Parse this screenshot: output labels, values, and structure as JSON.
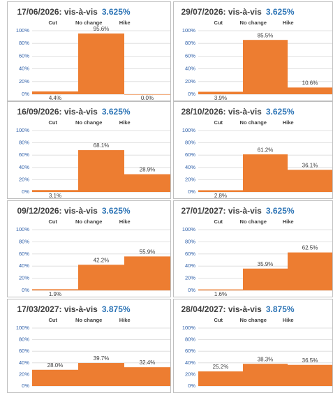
{
  "chart_data": [
    {
      "type": "bar",
      "title": "17/06/2026: vis-à-vis",
      "title_rate": "3.625%",
      "categories": [
        "Cut",
        "No change",
        "Hike"
      ],
      "values": [
        4.4,
        95.6,
        0.0
      ],
      "value_labels": [
        "4.4%",
        "95.6%",
        "0.0%"
      ],
      "color": "#ed7d31",
      "ylim": [
        0,
        100
      ],
      "yticks": [
        {
          "value": 0,
          "label": "0%"
        },
        {
          "value": 20,
          "label": "20%"
        },
        {
          "value": 40,
          "label": "40%"
        },
        {
          "value": 60,
          "label": "60%"
        },
        {
          "value": 80,
          "label": "80%"
        },
        {
          "value": 100,
          "label": "100%"
        }
      ],
      "grid": true
    },
    {
      "type": "bar",
      "title": "29/07/2026: vis-à-vis",
      "title_rate": "3.625%",
      "categories": [
        "Cut",
        "No change",
        "Hike"
      ],
      "values": [
        3.9,
        85.5,
        10.6
      ],
      "value_labels": [
        "3.9%",
        "85.5%",
        "10.6%"
      ],
      "color": "#ed7d31",
      "ylim": [
        0,
        100
      ],
      "yticks": [
        {
          "value": 0,
          "label": "0%"
        },
        {
          "value": 20,
          "label": "20%"
        },
        {
          "value": 40,
          "label": "40%"
        },
        {
          "value": 60,
          "label": "60%"
        },
        {
          "value": 80,
          "label": "80%"
        },
        {
          "value": 100,
          "label": "100%"
        }
      ],
      "grid": true
    },
    {
      "type": "bar",
      "title": "16/09/2026: vis-à-vis",
      "title_rate": "3.625%",
      "categories": [
        "Cut",
        "No change",
        "Hike"
      ],
      "values": [
        3.1,
        68.1,
        28.9
      ],
      "value_labels": [
        "3.1%",
        "68.1%",
        "28.9%"
      ],
      "color": "#ed7d31",
      "ylim": [
        0,
        100
      ],
      "yticks": [
        {
          "value": 0,
          "label": "0%"
        },
        {
          "value": 20,
          "label": "20%"
        },
        {
          "value": 40,
          "label": "40%"
        },
        {
          "value": 60,
          "label": "60%"
        },
        {
          "value": 80,
          "label": "80%"
        },
        {
          "value": 100,
          "label": "100%"
        }
      ],
      "grid": true
    },
    {
      "type": "bar",
      "title": "28/10/2026: vis-à-vis",
      "title_rate": "3.625%",
      "categories": [
        "Cut",
        "No change",
        "Hike"
      ],
      "values": [
        2.8,
        61.2,
        36.1
      ],
      "value_labels": [
        "2.8%",
        "61.2%",
        "36.1%"
      ],
      "color": "#ed7d31",
      "ylim": [
        0,
        100
      ],
      "yticks": [
        {
          "value": 0,
          "label": "0%"
        },
        {
          "value": 20,
          "label": "20%"
        },
        {
          "value": 40,
          "label": "40%"
        },
        {
          "value": 60,
          "label": "60%"
        },
        {
          "value": 80,
          "label": "80%"
        },
        {
          "value": 100,
          "label": "100%"
        }
      ],
      "grid": true
    },
    {
      "type": "bar",
      "title": "09/12/2026: vis-à-vis",
      "title_rate": "3.625%",
      "categories": [
        "Cut",
        "No change",
        "Hike"
      ],
      "values": [
        1.9,
        42.2,
        55.9
      ],
      "value_labels": [
        "1.9%",
        "42.2%",
        "55.9%"
      ],
      "color": "#ed7d31",
      "ylim": [
        0,
        100
      ],
      "yticks": [
        {
          "value": 0,
          "label": "0%"
        },
        {
          "value": 20,
          "label": "20%"
        },
        {
          "value": 40,
          "label": "40%"
        },
        {
          "value": 60,
          "label": "60%"
        },
        {
          "value": 80,
          "label": "80%"
        },
        {
          "value": 100,
          "label": "100%"
        }
      ],
      "grid": true
    },
    {
      "type": "bar",
      "title": "27/01/2027: vis-à-vis",
      "title_rate": "3.625%",
      "categories": [
        "Cut",
        "No change",
        "Hike"
      ],
      "values": [
        1.6,
        35.9,
        62.5
      ],
      "value_labels": [
        "1.6%",
        "35.9%",
        "62.5%"
      ],
      "color": "#ed7d31",
      "ylim": [
        0,
        100
      ],
      "yticks": [
        {
          "value": 0,
          "label": "0%"
        },
        {
          "value": 20,
          "label": "20%"
        },
        {
          "value": 40,
          "label": "40%"
        },
        {
          "value": 60,
          "label": "60%"
        },
        {
          "value": 80,
          "label": "80%"
        },
        {
          "value": 100,
          "label": "100%"
        }
      ],
      "grid": true
    },
    {
      "type": "bar",
      "title": "17/03/2027: vis-à-vis",
      "title_rate": "3.875%",
      "categories": [
        "Cut",
        "No change",
        "Hike"
      ],
      "values": [
        28.0,
        39.7,
        32.4
      ],
      "value_labels": [
        "28.0%",
        "39.7%",
        "32.4%"
      ],
      "color": "#ed7d31",
      "ylim": [
        0,
        100
      ],
      "yticks": [
        {
          "value": 0,
          "label": "0%"
        },
        {
          "value": 20,
          "label": "20%"
        },
        {
          "value": 40,
          "label": "40%"
        },
        {
          "value": 60,
          "label": "60%"
        },
        {
          "value": 80,
          "label": "80%"
        },
        {
          "value": 100,
          "label": "100%"
        }
      ],
      "grid": true
    },
    {
      "type": "bar",
      "title": "28/04/2027: vis-à-vis",
      "title_rate": "3.875%",
      "categories": [
        "Cut",
        "No change",
        "Hike"
      ],
      "values": [
        25.2,
        38.3,
        36.5
      ],
      "value_labels": [
        "25.2%",
        "38.3%",
        "36.5%"
      ],
      "color": "#ed7d31",
      "ylim": [
        0,
        100
      ],
      "yticks": [
        {
          "value": 0,
          "label": "0%"
        },
        {
          "value": 20,
          "label": "20%"
        },
        {
          "value": 40,
          "label": "40%"
        },
        {
          "value": 60,
          "label": "60%"
        },
        {
          "value": 80,
          "label": "80%"
        },
        {
          "value": 100,
          "label": "100%"
        }
      ],
      "grid": true
    }
  ]
}
